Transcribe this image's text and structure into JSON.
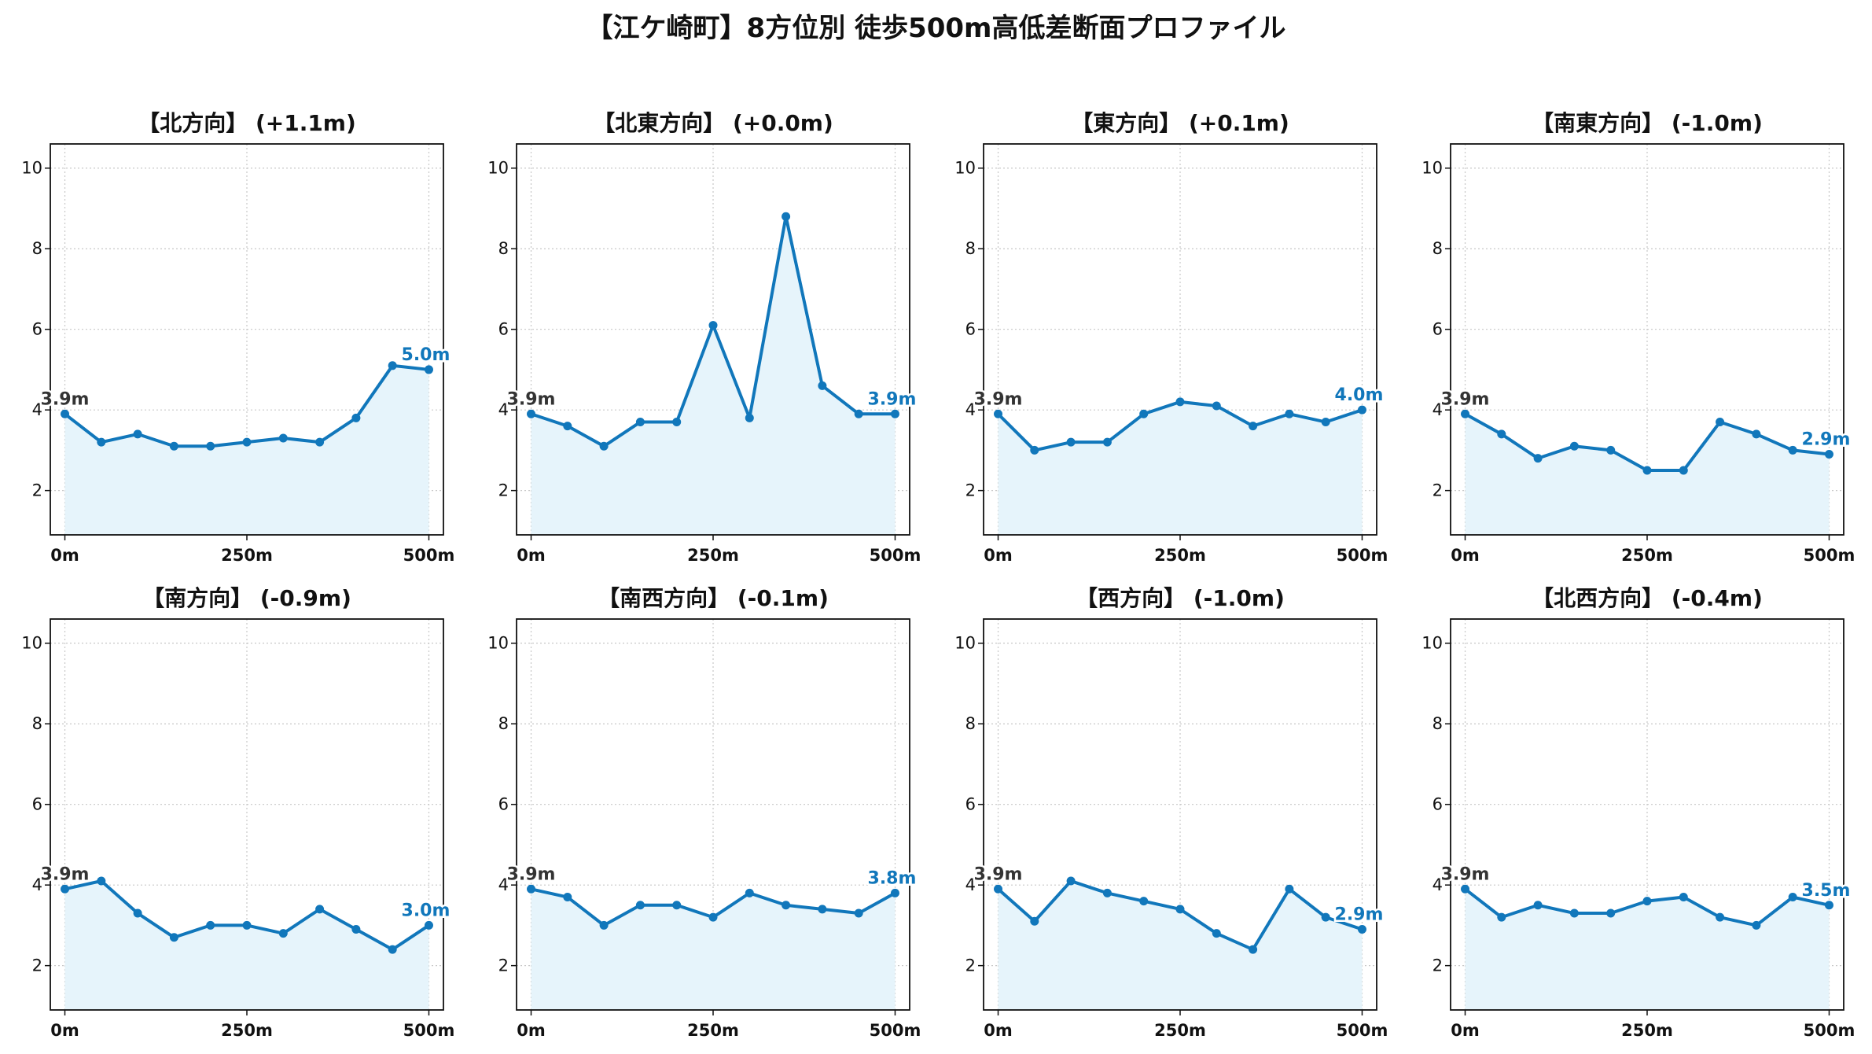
{
  "title": "【江ケ崎町】8方位別 徒歩500m高低差断面プロファイル",
  "colors": {
    "line": "#1177bb",
    "fill": "#e6f4fb",
    "start_label": "#333333",
    "end_label": "#1177bb",
    "grid": "#c8c8c8"
  },
  "chart_data": [
    {
      "type": "area",
      "title": "【北方向】 (+1.1m)",
      "x": [
        0,
        50,
        100,
        150,
        200,
        250,
        300,
        350,
        400,
        450,
        500
      ],
      "values": [
        3.9,
        3.2,
        3.4,
        3.1,
        3.1,
        3.2,
        3.3,
        3.2,
        3.8,
        5.1,
        5.0
      ],
      "start_label": "3.9m",
      "end_label": "5.0m",
      "xticks": [
        {
          "v": 0,
          "label": "0m"
        },
        {
          "v": 250,
          "label": "250m"
        },
        {
          "v": 500,
          "label": "500m"
        }
      ],
      "yticks": [
        2,
        4,
        6,
        8,
        10
      ],
      "xlim": [
        -20,
        520
      ],
      "ylim": [
        0.9,
        10.6
      ],
      "grid": true
    },
    {
      "type": "area",
      "title": "【北東方向】 (+0.0m)",
      "x": [
        0,
        50,
        100,
        150,
        200,
        250,
        300,
        350,
        400,
        450,
        500
      ],
      "values": [
        3.9,
        3.6,
        3.1,
        3.7,
        3.7,
        6.1,
        3.8,
        8.8,
        4.6,
        3.9,
        3.9
      ],
      "start_label": "3.9m",
      "end_label": "3.9m",
      "xticks": [
        {
          "v": 0,
          "label": "0m"
        },
        {
          "v": 250,
          "label": "250m"
        },
        {
          "v": 500,
          "label": "500m"
        }
      ],
      "yticks": [
        2,
        4,
        6,
        8,
        10
      ],
      "xlim": [
        -20,
        520
      ],
      "ylim": [
        0.9,
        10.6
      ],
      "grid": true
    },
    {
      "type": "area",
      "title": "【東方向】 (+0.1m)",
      "x": [
        0,
        50,
        100,
        150,
        200,
        250,
        300,
        350,
        400,
        450,
        500
      ],
      "values": [
        3.9,
        3.0,
        3.2,
        3.2,
        3.9,
        4.2,
        4.1,
        3.6,
        3.9,
        3.7,
        4.0
      ],
      "start_label": "3.9m",
      "end_label": "4.0m",
      "xticks": [
        {
          "v": 0,
          "label": "0m"
        },
        {
          "v": 250,
          "label": "250m"
        },
        {
          "v": 500,
          "label": "500m"
        }
      ],
      "yticks": [
        2,
        4,
        6,
        8,
        10
      ],
      "xlim": [
        -20,
        520
      ],
      "ylim": [
        0.9,
        10.6
      ],
      "grid": true
    },
    {
      "type": "area",
      "title": "【南東方向】 (-1.0m)",
      "x": [
        0,
        50,
        100,
        150,
        200,
        250,
        300,
        350,
        400,
        450,
        500
      ],
      "values": [
        3.9,
        3.4,
        2.8,
        3.1,
        3.0,
        2.5,
        2.5,
        3.7,
        3.4,
        3.0,
        2.9
      ],
      "start_label": "3.9m",
      "end_label": "2.9m",
      "xticks": [
        {
          "v": 0,
          "label": "0m"
        },
        {
          "v": 250,
          "label": "250m"
        },
        {
          "v": 500,
          "label": "500m"
        }
      ],
      "yticks": [
        2,
        4,
        6,
        8,
        10
      ],
      "xlim": [
        -20,
        520
      ],
      "ylim": [
        0.9,
        10.6
      ],
      "grid": true
    },
    {
      "type": "area",
      "title": "【南方向】 (-0.9m)",
      "x": [
        0,
        50,
        100,
        150,
        200,
        250,
        300,
        350,
        400,
        450,
        500
      ],
      "values": [
        3.9,
        4.1,
        3.3,
        2.7,
        3.0,
        3.0,
        2.8,
        3.4,
        2.9,
        2.4,
        3.0
      ],
      "start_label": "3.9m",
      "end_label": "3.0m",
      "xticks": [
        {
          "v": 0,
          "label": "0m"
        },
        {
          "v": 250,
          "label": "250m"
        },
        {
          "v": 500,
          "label": "500m"
        }
      ],
      "yticks": [
        2,
        4,
        6,
        8,
        10
      ],
      "xlim": [
        -20,
        520
      ],
      "ylim": [
        0.9,
        10.6
      ],
      "grid": true
    },
    {
      "type": "area",
      "title": "【南西方向】 (-0.1m)",
      "x": [
        0,
        50,
        100,
        150,
        200,
        250,
        300,
        350,
        400,
        450,
        500
      ],
      "values": [
        3.9,
        3.7,
        3.0,
        3.5,
        3.5,
        3.2,
        3.8,
        3.5,
        3.4,
        3.3,
        3.8
      ],
      "start_label": "3.9m",
      "end_label": "3.8m",
      "xticks": [
        {
          "v": 0,
          "label": "0m"
        },
        {
          "v": 250,
          "label": "250m"
        },
        {
          "v": 500,
          "label": "500m"
        }
      ],
      "yticks": [
        2,
        4,
        6,
        8,
        10
      ],
      "xlim": [
        -20,
        520
      ],
      "ylim": [
        0.9,
        10.6
      ],
      "grid": true
    },
    {
      "type": "area",
      "title": "【西方向】 (-1.0m)",
      "x": [
        0,
        50,
        100,
        150,
        200,
        250,
        300,
        350,
        400,
        450,
        500
      ],
      "values": [
        3.9,
        3.1,
        4.1,
        3.8,
        3.6,
        3.4,
        2.8,
        2.4,
        3.9,
        3.2,
        2.9
      ],
      "start_label": "3.9m",
      "end_label": "2.9m",
      "xticks": [
        {
          "v": 0,
          "label": "0m"
        },
        {
          "v": 250,
          "label": "250m"
        },
        {
          "v": 500,
          "label": "500m"
        }
      ],
      "yticks": [
        2,
        4,
        6,
        8,
        10
      ],
      "xlim": [
        -20,
        520
      ],
      "ylim": [
        0.9,
        10.6
      ],
      "grid": true
    },
    {
      "type": "area",
      "title": "【北西方向】 (-0.4m)",
      "x": [
        0,
        50,
        100,
        150,
        200,
        250,
        300,
        350,
        400,
        450,
        500
      ],
      "values": [
        3.9,
        3.2,
        3.5,
        3.3,
        3.3,
        3.6,
        3.7,
        3.2,
        3.0,
        3.7,
        3.5
      ],
      "start_label": "3.9m",
      "end_label": "3.5m",
      "xticks": [
        {
          "v": 0,
          "label": "0m"
        },
        {
          "v": 250,
          "label": "250m"
        },
        {
          "v": 500,
          "label": "500m"
        }
      ],
      "yticks": [
        2,
        4,
        6,
        8,
        10
      ],
      "xlim": [
        -20,
        520
      ],
      "ylim": [
        0.9,
        10.6
      ],
      "grid": true
    }
  ]
}
